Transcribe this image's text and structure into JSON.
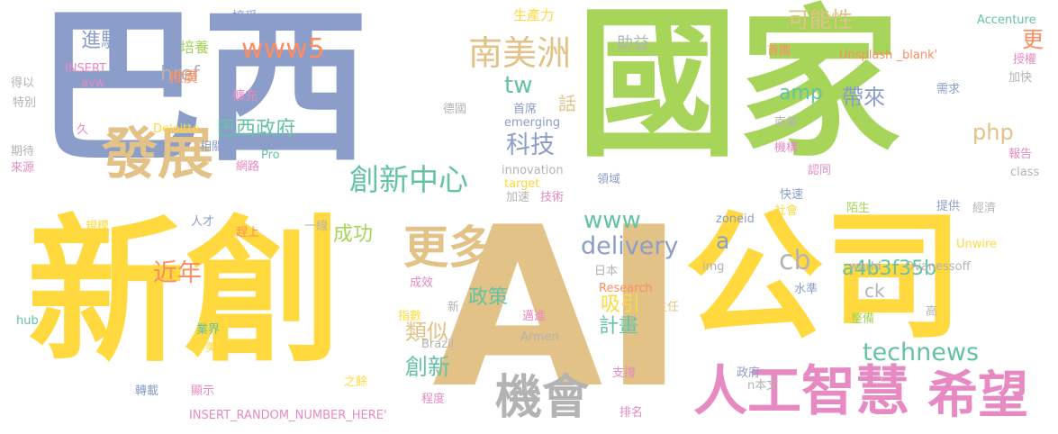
{
  "palette": {
    "blue": "#8b9dc9",
    "green": "#a6d55a",
    "yellow": "#ffd93d",
    "tan": "#e2c287",
    "pink": "#e78ac3",
    "teal": "#66c2a5",
    "orange": "#fc8d62",
    "grey": "#b3b3b3"
  },
  "words": [
    {
      "text": "巴西",
      "color": "blue"
    },
    {
      "text": "國家",
      "color": "green"
    },
    {
      "text": "新創",
      "color": "yellow"
    },
    {
      "text": "AI",
      "color": "tan"
    },
    {
      "text": "公司",
      "color": "yellow"
    },
    {
      "text": "人工智慧",
      "color": "pink"
    },
    {
      "text": "希望",
      "color": "pink"
    },
    {
      "text": "發展",
      "color": "tan"
    },
    {
      "text": "機會",
      "color": "grey"
    },
    {
      "text": "更多",
      "color": "tan"
    },
    {
      "text": "南美洲",
      "color": "tan"
    },
    {
      "text": "創新中心",
      "color": "teal"
    },
    {
      "text": "www5",
      "color": "orange"
    },
    {
      "text": "delivery",
      "color": "blue"
    },
    {
      "text": "technews",
      "color": "teal"
    },
    {
      "text": "科技",
      "color": "blue"
    },
    {
      "text": "tw",
      "color": "teal"
    },
    {
      "text": "amp",
      "color": "teal"
    },
    {
      "text": "php",
      "color": "tan"
    },
    {
      "text": "www",
      "color": "teal"
    },
    {
      "text": "a",
      "color": "blue"
    },
    {
      "text": "cb",
      "color": "grey"
    },
    {
      "text": "a4b3f35b",
      "color": "teal"
    },
    {
      "text": "近年",
      "color": "orange"
    },
    {
      "text": "創新",
      "color": "teal"
    },
    {
      "text": "巴西政府",
      "color": "teal"
    },
    {
      "text": "進駐",
      "color": "blue"
    },
    {
      "text": "href",
      "color": "grey"
    },
    {
      "text": "可能性",
      "color": "tan"
    },
    {
      "text": "更",
      "color": "orange"
    },
    {
      "text": "帶來",
      "color": "blue"
    },
    {
      "text": "話",
      "color": "tan"
    },
    {
      "text": "ck",
      "color": "grey"
    },
    {
      "text": "計畫",
      "color": "teal"
    },
    {
      "text": "類似",
      "color": "tan"
    },
    {
      "text": "政策",
      "color": "teal"
    },
    {
      "text": "成功",
      "color": "green"
    },
    {
      "text": "吸引",
      "color": "yellow"
    },
    {
      "text": "助益",
      "color": "grey"
    },
    {
      "text": "生產力",
      "color": "yellow"
    },
    {
      "text": "接受",
      "color": "blue"
    },
    {
      "text": "培養",
      "color": "green"
    },
    {
      "text": "推廣",
      "color": "orange"
    },
    {
      "text": "擴充",
      "color": "pink"
    },
    {
      "text": "INSERT",
      "color": "pink"
    },
    {
      "text": "avw",
      "color": "pink"
    },
    {
      "text": "得以",
      "color": "grey"
    },
    {
      "text": "特別",
      "color": "grey"
    },
    {
      "text": "久",
      "color": "pink"
    },
    {
      "text": "期待",
      "color": "grey"
    },
    {
      "text": "來源",
      "color": "pink"
    },
    {
      "text": "Deloitte",
      "color": "yellow"
    },
    {
      "text": "相關",
      "color": "blue"
    },
    {
      "text": "Pro",
      "color": "teal"
    },
    {
      "text": "網路",
      "color": "pink"
    },
    {
      "text": "規模",
      "color": "yellow"
    },
    {
      "text": "人才",
      "color": "blue"
    },
    {
      "text": "趕上",
      "color": "orange"
    },
    {
      "text": "一線",
      "color": "grey"
    },
    {
      "text": "src",
      "color": "yellow"
    },
    {
      "text": "hub",
      "color": "teal"
    },
    {
      "text": "業界",
      "color": "teal"
    },
    {
      "text": "美國",
      "color": "yellow"
    },
    {
      "text": "轉載",
      "color": "blue"
    },
    {
      "text": "顯示",
      "color": "pink"
    },
    {
      "text": "INSERT_RANDOM_NUMBER_HERE'",
      "color": "pink"
    },
    {
      "text": "之餘",
      "color": "yellow"
    },
    {
      "text": "程度",
      "color": "pink"
    },
    {
      "text": "新",
      "color": "grey"
    },
    {
      "text": "成效",
      "color": "pink"
    },
    {
      "text": "指數",
      "color": "yellow"
    },
    {
      "text": "Brazil",
      "color": "grey"
    },
    {
      "text": "德國",
      "color": "grey"
    },
    {
      "text": "首席",
      "color": "blue"
    },
    {
      "text": "emerging",
      "color": "blue"
    },
    {
      "text": "innovation",
      "color": "grey"
    },
    {
      "text": "target",
      "color": "yellow"
    },
    {
      "text": "加速",
      "color": "grey"
    },
    {
      "text": "技術",
      "color": "pink"
    },
    {
      "text": "日本",
      "color": "grey"
    },
    {
      "text": "Research",
      "color": "orange"
    },
    {
      "text": "邁進",
      "color": "pink"
    },
    {
      "text": "Armen",
      "color": "grey"
    },
    {
      "text": "支撐",
      "color": "pink"
    },
    {
      "text": "排名",
      "color": "pink"
    },
    {
      "text": "主任",
      "color": "tan"
    },
    {
      "text": "img",
      "color": "grey"
    },
    {
      "text": "zoneid",
      "color": "blue"
    },
    {
      "text": "Accenture",
      "color": "teal"
    },
    {
      "text": "Unsplash _blank'",
      "color": "orange"
    },
    {
      "text": "首圖",
      "color": "orange"
    },
    {
      "text": "授權",
      "color": "pink"
    },
    {
      "text": "加快",
      "color": "grey"
    },
    {
      "text": "需求",
      "color": "blue"
    },
    {
      "text": "南美",
      "color": "grey"
    },
    {
      "text": "報告",
      "color": "pink"
    },
    {
      "text": "機構",
      "color": "pink"
    },
    {
      "text": "認同",
      "color": "pink"
    },
    {
      "text": "class",
      "color": "grey"
    },
    {
      "text": "領域",
      "color": "blue"
    },
    {
      "text": "快速",
      "color": "blue"
    },
    {
      "text": "社會",
      "color": "yellow"
    },
    {
      "text": "陌生",
      "color": "green"
    },
    {
      "text": "提供",
      "color": "blue"
    },
    {
      "text": "經濟",
      "color": "grey"
    },
    {
      "text": "Unwire",
      "color": "yellow"
    },
    {
      "text": "world",
      "color": "grey"
    },
    {
      "text": "Ovanessoff",
      "color": "grey"
    },
    {
      "text": "水準",
      "color": "blue"
    },
    {
      "text": "整備",
      "color": "green"
    },
    {
      "text": "高",
      "color": "grey"
    },
    {
      "text": "政府",
      "color": "blue"
    },
    {
      "text": "n本文",
      "color": "grey"
    }
  ]
}
